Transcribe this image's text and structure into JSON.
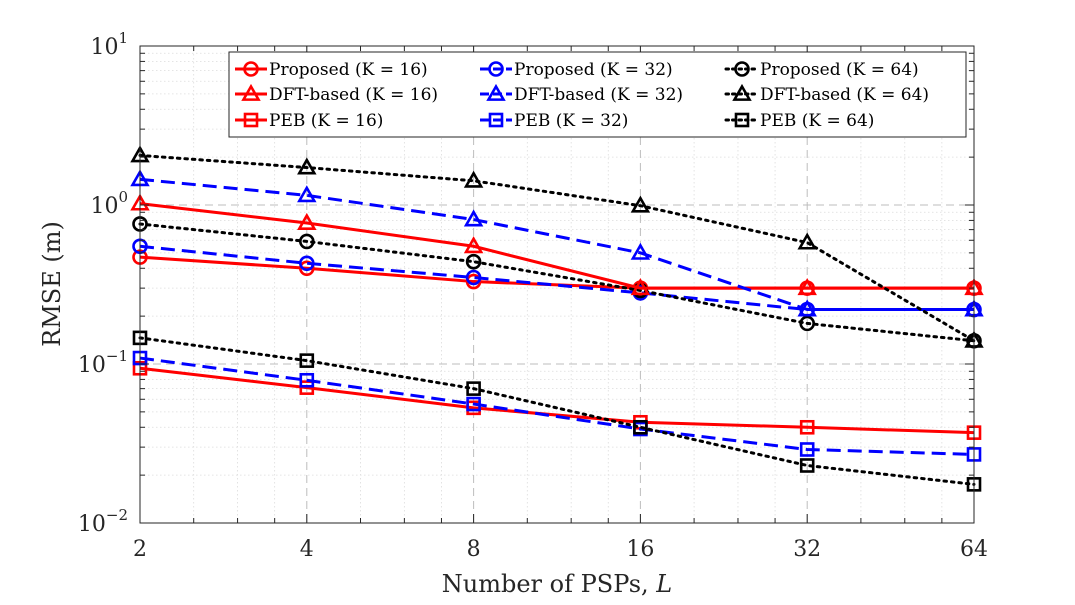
{
  "chart_data": {
    "type": "line",
    "yscale": "log",
    "xscale": "log2",
    "xlabel_prefix": "Number of PSPs, ",
    "xlabel_var": "L",
    "ylabel": "RMSE (m)",
    "x": [
      2,
      4,
      8,
      16,
      32,
      64
    ],
    "xticklabels": [
      "2",
      "4",
      "8",
      "16",
      "32",
      "64"
    ],
    "xlim": [
      2,
      64
    ],
    "ylim": [
      0.01,
      10
    ],
    "yticks": [
      {
        "base": "10",
        "exp": "1",
        "value": 10
      },
      {
        "base": "10",
        "exp": "0",
        "value": 1
      },
      {
        "base": "10",
        "exp": "−1",
        "value": 0.1
      },
      {
        "base": "10",
        "exp": "−2",
        "value": 0.01
      }
    ],
    "grid": true,
    "legend_position": "top-right",
    "series": [
      {
        "method": "Proposed",
        "k": "16",
        "color": "#ff0000",
        "marker": "circle",
        "dash": "solid",
        "values": [
          0.47,
          0.4,
          0.33,
          0.3,
          0.3,
          0.3
        ]
      },
      {
        "method": "Proposed",
        "k": "32",
        "color": "#0000ff",
        "marker": "circle",
        "dash": "dashed",
        "values": [
          0.55,
          0.43,
          0.35,
          0.28,
          0.22,
          0.22
        ]
      },
      {
        "method": "Proposed",
        "k": "64",
        "color": "#000000",
        "marker": "circle",
        "dash": "dotted",
        "values": [
          0.76,
          0.59,
          0.44,
          0.29,
          0.18,
          0.14
        ]
      },
      {
        "method": "DFT-based",
        "k": "16",
        "color": "#ff0000",
        "marker": "triangle",
        "dash": "solid",
        "values": [
          1.02,
          0.77,
          0.55,
          0.3,
          0.3,
          0.3
        ]
      },
      {
        "method": "DFT-based",
        "k": "32",
        "color": "#0000ff",
        "marker": "triangle",
        "dash": "dashed",
        "values": [
          1.45,
          1.15,
          0.81,
          0.5,
          0.22,
          0.22
        ]
      },
      {
        "method": "DFT-based",
        "k": "64",
        "color": "#000000",
        "marker": "triangle",
        "dash": "dotted",
        "values": [
          2.05,
          1.72,
          1.42,
          0.99,
          0.58,
          0.14
        ]
      },
      {
        "method": "PEB",
        "k": "16",
        "color": "#ff0000",
        "marker": "square",
        "dash": "solid",
        "values": [
          0.094,
          0.071,
          0.053,
          0.043,
          0.04,
          0.037
        ]
      },
      {
        "method": "PEB",
        "k": "32",
        "color": "#0000ff",
        "marker": "square",
        "dash": "dashed",
        "values": [
          0.109,
          0.079,
          0.056,
          0.039,
          0.029,
          0.027
        ]
      },
      {
        "method": "PEB",
        "k": "64",
        "color": "#000000",
        "marker": "square",
        "dash": "dotted",
        "values": [
          0.146,
          0.105,
          0.07,
          0.04,
          0.023,
          0.0175
        ]
      }
    ],
    "legend": [
      {
        "series": 0,
        "label": "Proposed (K = 16)"
      },
      {
        "series": 1,
        "label": "Proposed (K = 32)"
      },
      {
        "series": 2,
        "label": "Proposed (K = 64)"
      },
      {
        "series": 3,
        "label": "DFT-based (K = 16)"
      },
      {
        "series": 4,
        "label": "DFT-based (K = 32)"
      },
      {
        "series": 5,
        "label": "DFT-based (K = 64)"
      },
      {
        "series": 6,
        "label": "PEB (K = 16)"
      },
      {
        "series": 7,
        "label": "PEB (K = 32)"
      },
      {
        "series": 8,
        "label": "PEB (K = 64)"
      }
    ]
  }
}
